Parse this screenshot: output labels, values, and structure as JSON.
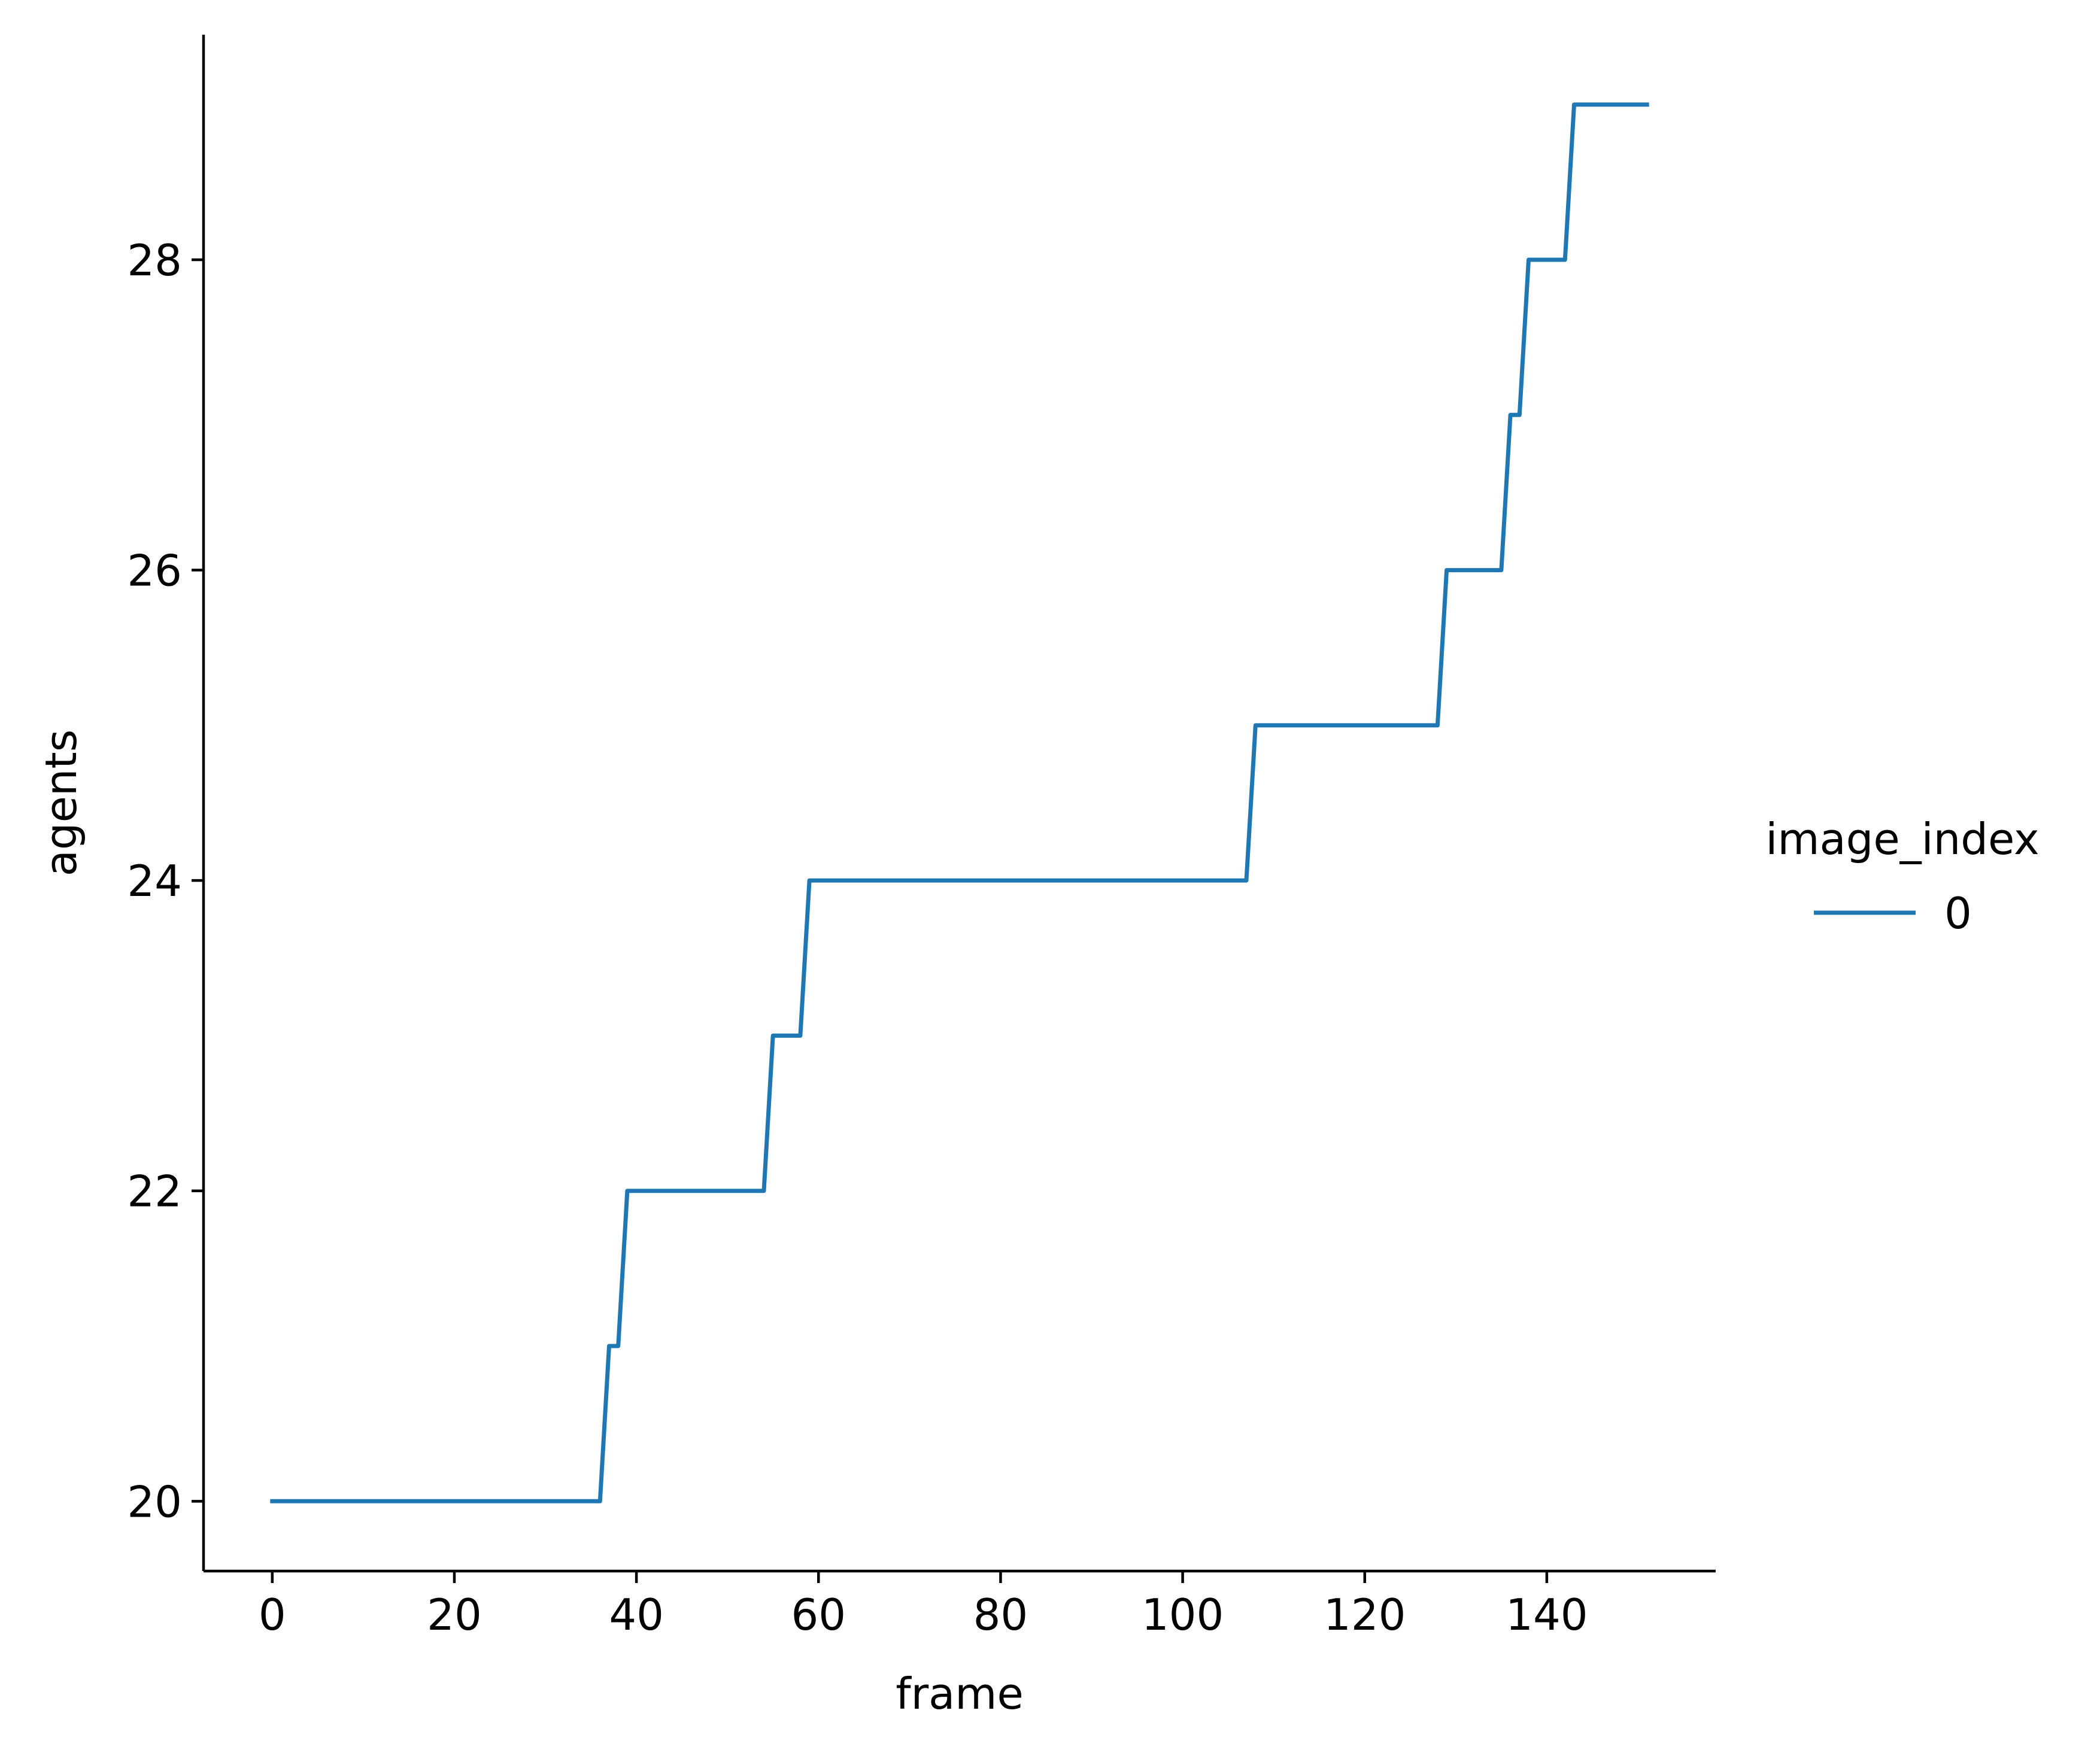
{
  "chart_data": {
    "type": "line",
    "title": "",
    "xlabel": "frame",
    "ylabel": "agents",
    "xlim": [
      -7.55,
      158.55
    ],
    "ylim": [
      19.55,
      29.45
    ],
    "x_ticks": [
      0,
      20,
      40,
      60,
      80,
      100,
      120,
      140
    ],
    "y_ticks": [
      20,
      22,
      24,
      26,
      28
    ],
    "grid": false,
    "legend": {
      "title": "image_index",
      "placement": "right"
    },
    "series": [
      {
        "name": "0",
        "color": "#1f77b4",
        "points": [
          [
            0,
            20
          ],
          [
            36,
            20
          ],
          [
            37,
            21
          ],
          [
            38,
            21
          ],
          [
            39,
            22
          ],
          [
            54,
            22
          ],
          [
            55,
            23
          ],
          [
            58,
            23
          ],
          [
            59,
            24
          ],
          [
            107,
            24
          ],
          [
            108,
            25
          ],
          [
            128,
            25
          ],
          [
            129,
            26
          ],
          [
            135,
            26
          ],
          [
            136,
            27
          ],
          [
            137,
            27
          ],
          [
            138,
            28
          ],
          [
            142,
            28
          ],
          [
            143,
            29
          ],
          [
            151,
            29
          ]
        ]
      }
    ]
  }
}
